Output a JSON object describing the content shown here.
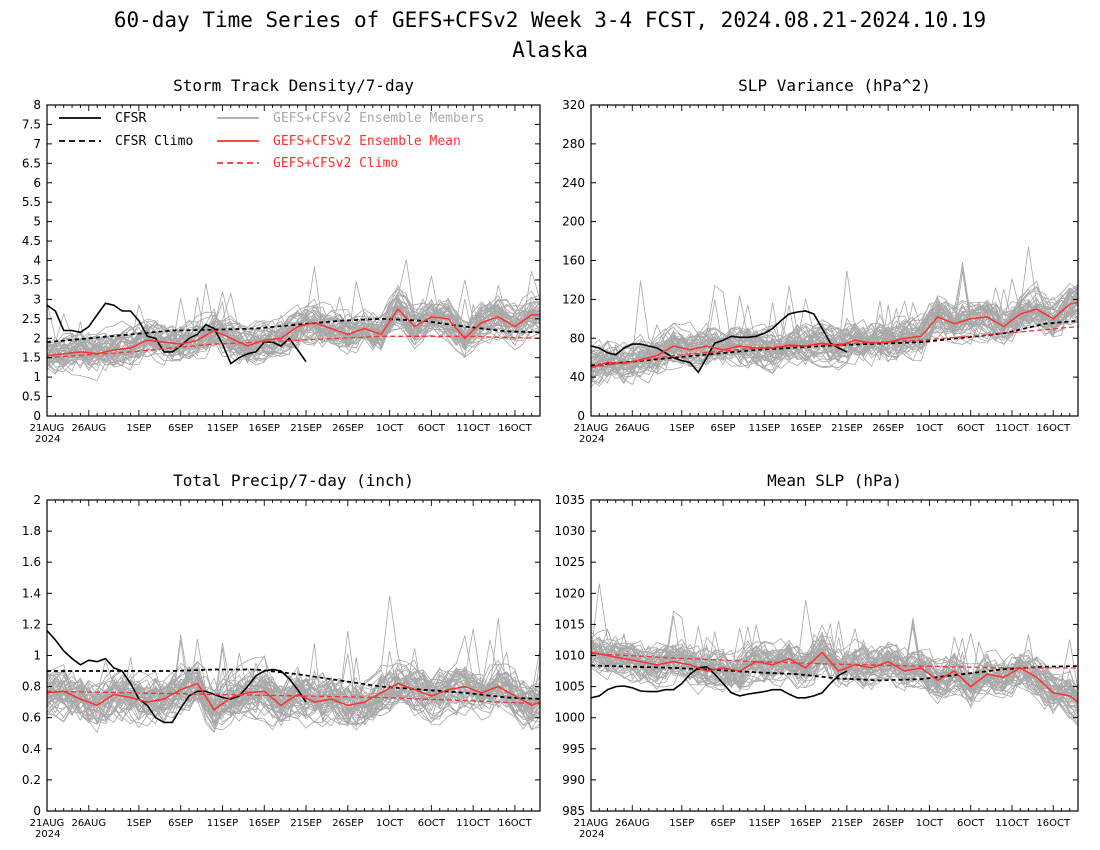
{
  "figure": {
    "title_line1": "60-day Time Series of GEFS+CFSv2 Week 3-4 FCST, 2024.08.21-2024.10.19",
    "title_line2": "Alaska"
  },
  "legend": {
    "cfsr": "CFSR",
    "cfsr_climo": "CFSR Climo",
    "members": "GEFS+CFSv2 Ensemble Members",
    "mean": "GEFS+CFSv2 Ensemble Mean",
    "climo": "GEFS+CFSv2 Climo"
  },
  "colors": {
    "members": "#a8a8a8",
    "mean": "#ff3030",
    "climo": "#ff3030",
    "cfsr": "#000000",
    "cfsr_climo": "#000000"
  },
  "x_axis": {
    "tick_labels": [
      "21AUG",
      "26AUG",
      "1SEP",
      "6SEP",
      "11SEP",
      "16SEP",
      "21SEP",
      "26SEP",
      "1OCT",
      "6OCT",
      "11OCT",
      "16OCT"
    ],
    "tick_days": [
      0,
      5,
      11,
      16,
      21,
      26,
      31,
      36,
      41,
      46,
      51,
      56
    ],
    "year_label": "2024",
    "xlim": [
      0,
      59
    ]
  },
  "chart_data": [
    {
      "id": "storm",
      "type": "line",
      "title": "Storm Track Density/7-day",
      "ylim": [
        0,
        8
      ],
      "y_ticks": [
        "0",
        "0.5",
        "1",
        "1.5",
        "2",
        "2.5",
        "3",
        "3.5",
        "4",
        "4.5",
        "5",
        "5.5",
        "6",
        "6.5",
        "7",
        "7.5",
        "8"
      ],
      "show_legend": true,
      "members": {
        "count": 48,
        "base_start": 1.5,
        "base_end": 2.6,
        "spread": 0.6,
        "spike": 1.5,
        "min": 0.1
      },
      "series": [
        {
          "name": "CFSR",
          "x": [
            0,
            1,
            2,
            3,
            4,
            5,
            6,
            7,
            8,
            9,
            10,
            11,
            12,
            13,
            14,
            15,
            16,
            17,
            18,
            19,
            20,
            21,
            22,
            23,
            24,
            25,
            26,
            27,
            28,
            29,
            30,
            31
          ],
          "y": [
            2.85,
            2.7,
            2.2,
            2.2,
            2.15,
            2.3,
            2.6,
            2.9,
            2.85,
            2.7,
            2.7,
            2.45,
            2.05,
            2.0,
            1.65,
            1.65,
            1.8,
            2.0,
            2.1,
            2.35,
            2.25,
            1.85,
            1.35,
            1.5,
            1.6,
            1.65,
            1.9,
            1.9,
            1.8,
            2.0,
            1.7,
            1.4
          ]
        },
        {
          "name": "CFSR Climo",
          "x": [
            0,
            5,
            10,
            15,
            20,
            25,
            30,
            35,
            40,
            45,
            50,
            55,
            59
          ],
          "y": [
            1.9,
            2.0,
            2.1,
            2.2,
            2.22,
            2.25,
            2.35,
            2.45,
            2.5,
            2.45,
            2.3,
            2.18,
            2.15
          ]
        },
        {
          "name": "GEFS+CFSv2 Ensemble Mean",
          "x": [
            0,
            2,
            4,
            6,
            8,
            10,
            12,
            14,
            16,
            18,
            20,
            22,
            24,
            26,
            28,
            30,
            32,
            34,
            36,
            38,
            40,
            42,
            44,
            46,
            48,
            50,
            52,
            54,
            56,
            58,
            59
          ],
          "y": [
            1.55,
            1.6,
            1.65,
            1.6,
            1.7,
            1.75,
            1.95,
            1.9,
            1.85,
            1.95,
            2.2,
            2.0,
            1.8,
            1.95,
            2.0,
            2.3,
            2.4,
            2.25,
            2.1,
            2.25,
            2.1,
            2.75,
            2.3,
            2.55,
            2.5,
            2.0,
            2.4,
            2.55,
            2.3,
            2.6,
            2.6
          ]
        },
        {
          "name": "GEFS+CFSv2 Climo",
          "x": [
            0,
            10,
            20,
            30,
            40,
            50,
            59
          ],
          "y": [
            1.5,
            1.65,
            1.85,
            1.95,
            2.05,
            2.05,
            2.0
          ]
        }
      ]
    },
    {
      "id": "slpvar",
      "type": "line",
      "title": "SLP Variance (hPa^2)",
      "ylim": [
        0,
        320
      ],
      "y_ticks": [
        "0",
        "40",
        "80",
        "120",
        "160",
        "200",
        "240",
        "280",
        "320"
      ],
      "show_legend": false,
      "members": {
        "count": 48,
        "base_start": 50,
        "base_end": 100,
        "spread": 25,
        "spike": 70,
        "min": 15
      },
      "series": [
        {
          "name": "CFSR",
          "x": [
            0,
            1,
            2,
            3,
            4,
            5,
            6,
            7,
            8,
            9,
            10,
            11,
            12,
            13,
            14,
            15,
            16,
            17,
            18,
            19,
            20,
            21,
            22,
            23,
            24,
            25,
            26,
            27,
            28,
            29,
            30,
            31
          ],
          "y": [
            72,
            70,
            65,
            63,
            70,
            74,
            74,
            72,
            70,
            65,
            60,
            57,
            55,
            45,
            60,
            75,
            78,
            82,
            81,
            81,
            82,
            85,
            90,
            98,
            105,
            107,
            108,
            105,
            90,
            75,
            70,
            66
          ]
        },
        {
          "name": "CFSR Climo",
          "x": [
            0,
            10,
            20,
            30,
            40,
            50,
            55,
            59
          ],
          "y": [
            52,
            60,
            68,
            73,
            76,
            85,
            95,
            98
          ]
        },
        {
          "name": "GEFS+CFSv2 Ensemble Mean",
          "x": [
            0,
            2,
            4,
            6,
            8,
            10,
            12,
            14,
            16,
            18,
            20,
            22,
            24,
            26,
            28,
            30,
            32,
            34,
            36,
            38,
            40,
            42,
            44,
            46,
            48,
            50,
            52,
            54,
            56,
            58,
            59
          ],
          "y": [
            50,
            55,
            54,
            58,
            62,
            72,
            68,
            72,
            68,
            72,
            70,
            70,
            73,
            72,
            75,
            72,
            78,
            75,
            76,
            80,
            82,
            102,
            95,
            100,
            102,
            92,
            105,
            110,
            100,
            115,
            117
          ]
        },
        {
          "name": "GEFS+CFSv2 Climo",
          "x": [
            0,
            10,
            20,
            30,
            40,
            50,
            59
          ],
          "y": [
            50,
            62,
            70,
            74,
            78,
            85,
            92
          ]
        }
      ]
    },
    {
      "id": "precip",
      "type": "line",
      "title": "Total Precip/7-day (inch)",
      "ylim": [
        0,
        2
      ],
      "y_ticks": [
        "0",
        "0.2",
        "0.4",
        "0.6",
        "0.8",
        "1",
        "1.2",
        "1.4",
        "1.6",
        "1.8",
        "2"
      ],
      "show_legend": false,
      "members": {
        "count": 48,
        "base_start": 0.75,
        "base_end": 0.72,
        "spread": 0.18,
        "spike": 0.5,
        "min": 0.15
      },
      "series": [
        {
          "name": "CFSR",
          "x": [
            0,
            1,
            2,
            3,
            4,
            5,
            6,
            7,
            8,
            9,
            10,
            11,
            12,
            13,
            14,
            15,
            16,
            17,
            18,
            19,
            20,
            21,
            22,
            23,
            24,
            25,
            26,
            27,
            28,
            29,
            30,
            31
          ],
          "y": [
            1.16,
            1.1,
            1.03,
            0.98,
            0.94,
            0.97,
            0.96,
            0.98,
            0.92,
            0.9,
            0.82,
            0.72,
            0.68,
            0.6,
            0.57,
            0.57,
            0.66,
            0.74,
            0.77,
            0.77,
            0.75,
            0.73,
            0.72,
            0.74,
            0.8,
            0.87,
            0.9,
            0.91,
            0.9,
            0.85,
            0.78,
            0.7
          ]
        },
        {
          "name": "CFSR Climo",
          "x": [
            0,
            5,
            10,
            15,
            20,
            25,
            30,
            35,
            40,
            45,
            50,
            55,
            59
          ],
          "y": [
            0.9,
            0.9,
            0.9,
            0.9,
            0.91,
            0.91,
            0.88,
            0.84,
            0.8,
            0.78,
            0.76,
            0.73,
            0.72
          ]
        },
        {
          "name": "GEFS+CFSv2 Ensemble Mean",
          "x": [
            0,
            2,
            4,
            6,
            8,
            10,
            12,
            14,
            16,
            18,
            20,
            22,
            24,
            26,
            28,
            30,
            32,
            34,
            36,
            38,
            40,
            42,
            44,
            46,
            48,
            50,
            52,
            54,
            56,
            58,
            59
          ],
          "y": [
            0.76,
            0.77,
            0.72,
            0.68,
            0.75,
            0.73,
            0.7,
            0.72,
            0.78,
            0.82,
            0.65,
            0.73,
            0.76,
            0.77,
            0.68,
            0.75,
            0.7,
            0.72,
            0.68,
            0.7,
            0.76,
            0.82,
            0.78,
            0.74,
            0.78,
            0.8,
            0.76,
            0.8,
            0.74,
            0.68,
            0.7
          ]
        },
        {
          "name": "GEFS+CFSv2 Climo",
          "x": [
            0,
            10,
            20,
            30,
            40,
            50,
            59
          ],
          "y": [
            0.77,
            0.76,
            0.75,
            0.74,
            0.73,
            0.71,
            0.69
          ]
        }
      ]
    },
    {
      "id": "slp",
      "type": "line",
      "title": "Mean SLP (hPa)",
      "ylim": [
        985,
        1035
      ],
      "y_ticks": [
        "985",
        "990",
        "995",
        "1000",
        "1005",
        "1010",
        "1015",
        "1020",
        "1025",
        "1030",
        "1035"
      ],
      "show_legend": false,
      "members": {
        "count": 48,
        "base_start": 1009,
        "base_end": 1005,
        "spread": 4,
        "spike": 10,
        "min": 988
      },
      "series": [
        {
          "name": "CFSR",
          "x": [
            0,
            1,
            2,
            3,
            4,
            5,
            6,
            7,
            8,
            9,
            10,
            11,
            12,
            13,
            14,
            15,
            16,
            17,
            18,
            19,
            20,
            21,
            22,
            23,
            24,
            25,
            26,
            27,
            28,
            29,
            30,
            31
          ],
          "y": [
            1003.2,
            1003.5,
            1004.5,
            1005.0,
            1005.1,
            1004.8,
            1004.3,
            1004.2,
            1004.2,
            1004.5,
            1004.5,
            1005.5,
            1007.0,
            1008.0,
            1008.2,
            1007.0,
            1005.5,
            1004.0,
            1003.5,
            1003.8,
            1004.0,
            1004.2,
            1004.5,
            1004.5,
            1003.8,
            1003.2,
            1003.2,
            1003.5,
            1004.0,
            1005.5,
            1006.8,
            1007.5
          ]
        },
        {
          "name": "CFSR Climo",
          "x": [
            0,
            5,
            10,
            15,
            20,
            25,
            30,
            35,
            40,
            45,
            50,
            55,
            59
          ],
          "y": [
            1008.4,
            1008.2,
            1008.0,
            1007.7,
            1007.3,
            1007.0,
            1006.3,
            1006.0,
            1006.2,
            1007.0,
            1007.8,
            1008.2,
            1008.3
          ]
        },
        {
          "name": "GEFS+CFSv2 Ensemble Mean",
          "x": [
            0,
            2,
            4,
            6,
            8,
            10,
            12,
            14,
            16,
            18,
            20,
            22,
            24,
            26,
            28,
            30,
            32,
            34,
            36,
            38,
            40,
            42,
            44,
            46,
            48,
            50,
            52,
            54,
            56,
            58,
            59
          ],
          "y": [
            1010.5,
            1010.0,
            1009.5,
            1009.0,
            1008.5,
            1009.0,
            1008.5,
            1007.5,
            1008.0,
            1007.5,
            1009.0,
            1008.5,
            1009.5,
            1008.0,
            1010.5,
            1007.5,
            1008.5,
            1008.0,
            1009.0,
            1007.5,
            1008.0,
            1006.0,
            1007.5,
            1005.0,
            1007.0,
            1006.5,
            1008.0,
            1006.5,
            1004.0,
            1003.5,
            1002.5
          ]
        },
        {
          "name": "GEFS+CFSv2 Climo",
          "x": [
            0,
            10,
            20,
            30,
            40,
            50,
            59
          ],
          "y": [
            1010.3,
            1009.6,
            1009.0,
            1008.6,
            1008.3,
            1008.0,
            1008.0
          ]
        }
      ]
    }
  ]
}
